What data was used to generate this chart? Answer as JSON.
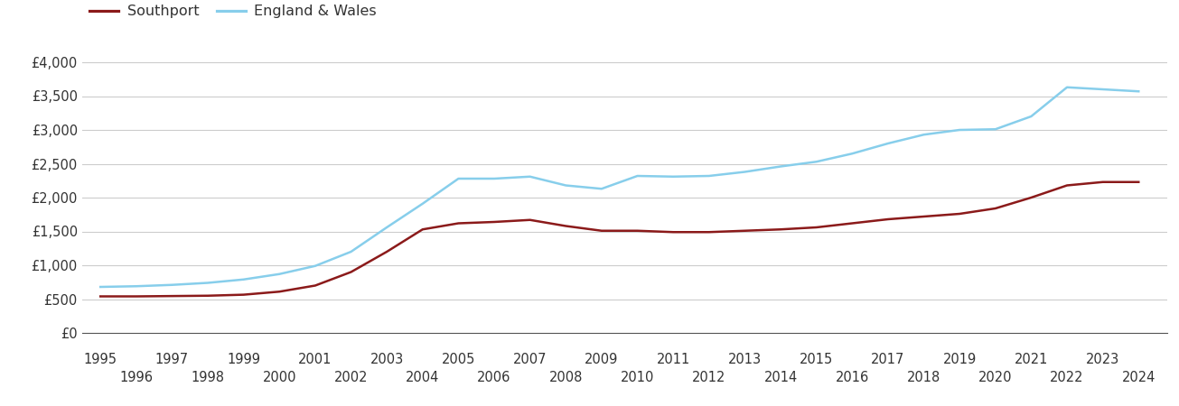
{
  "southport_color": "#8B1A1A",
  "england_wales_color": "#87CEEB",
  "background_color": "#ffffff",
  "grid_color": "#cccccc",
  "years": [
    1995,
    1996,
    1997,
    1998,
    1999,
    2000,
    2001,
    2002,
    2003,
    2004,
    2005,
    2006,
    2007,
    2008,
    2009,
    2010,
    2011,
    2012,
    2013,
    2014,
    2015,
    2016,
    2017,
    2018,
    2019,
    2020,
    2021,
    2022,
    2023,
    2024
  ],
  "southport": [
    540,
    540,
    545,
    550,
    565,
    610,
    700,
    900,
    1200,
    1530,
    1620,
    1640,
    1670,
    1580,
    1510,
    1510,
    1490,
    1490,
    1510,
    1530,
    1560,
    1620,
    1680,
    1720,
    1760,
    1840,
    2000,
    2180,
    2230,
    2230
  ],
  "england_wales": [
    680,
    690,
    710,
    740,
    790,
    870,
    990,
    1200,
    1560,
    1910,
    2280,
    2280,
    2310,
    2180,
    2130,
    2320,
    2310,
    2320,
    2380,
    2460,
    2530,
    2650,
    2800,
    2930,
    3000,
    3010,
    3200,
    3630,
    3600,
    3570
  ],
  "yticks": [
    0,
    500,
    1000,
    1500,
    2000,
    2500,
    3000,
    3500,
    4000
  ],
  "ylabels": [
    "£0",
    "£500",
    "£1,000",
    "£1,500",
    "£2,000",
    "£2,500",
    "£3,000",
    "£3,500",
    "£4,000"
  ],
  "ylim": [
    0,
    4200
  ],
  "line_width": 1.8,
  "legend_labels": [
    "Southport",
    "England & Wales"
  ],
  "tick_fontsize": 10.5,
  "legend_fontsize": 11.5
}
